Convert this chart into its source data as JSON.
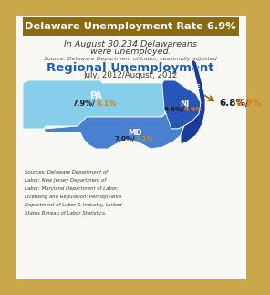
{
  "title": "Delaware Unemployment Rate 6.9%",
  "title_bg": "#8B6A14",
  "title_color": "#FFFFFF",
  "subtitle1": "In August 30,234 Delawareans",
  "subtitle2": "were unemployed.",
  "source_top": "Source: Delaware Department of Labor, seasonally adjusted",
  "regional_title": "Regional Unemployment",
  "regional_subtitle": "July, 2012/August, 2012",
  "bg_outer": "#C8A84B",
  "bg_inner": "#F8F8F4",
  "map_pa_color": "#87CEEB",
  "map_nj_color": "#2855B8",
  "map_md_color": "#4A80D0",
  "map_de_color": "#1A3A9C",
  "pa_july": "7.9%",
  "pa_aug": "8.1%",
  "nj_july": "9.6%",
  "nj_aug": "9.9%",
  "md_july": "7.0%",
  "md_aug": "7.1%",
  "de_july": "6.8%",
  "de_aug": "6.9%",
  "sources_lines": [
    "Sources: Delaware Department of",
    "Labor; New Jersey Department of",
    "Labor; Maryland Department of Labor,",
    "Licensing and Regulation; Pennsylvania",
    "Department of Labor & Industry, United",
    "States Bureau of Labor Statistics."
  ],
  "color_july": "#1A1A1A",
  "color_aug": "#D4841A",
  "regional_title_color": "#1A5CB0"
}
